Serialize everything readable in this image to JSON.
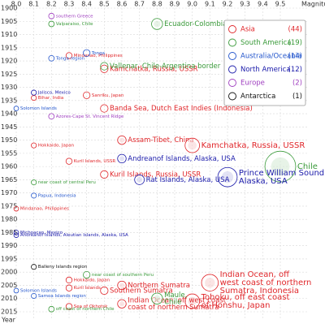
{
  "chart_data": {
    "type": "scatter",
    "x_label": "Magnitude",
    "y_label": "Year",
    "xlim": [
      8.0,
      9.5
    ],
    "ylim": [
      1900,
      2015
    ],
    "xticks": [
      {
        "value": 8.0,
        "label": "8.0"
      },
      8.1,
      8.2,
      8.3,
      8.4,
      8.5,
      8.6,
      8.7,
      8.8,
      8.9,
      {
        "value": 9.0,
        "label": "9.0"
      },
      9.1,
      9.2,
      9.3,
      9.4,
      9.5
    ],
    "yticks": [
      1900,
      1905,
      1910,
      1915,
      1920,
      1925,
      1930,
      1935,
      1940,
      1945,
      1950,
      1955,
      1960,
      1965,
      1970,
      1975,
      1980,
      1985,
      1990,
      1995,
      2000,
      2005,
      2010,
      2015
    ],
    "grid": true,
    "legend_position": "upper right",
    "series": [
      {
        "name": "Asia",
        "color": "#e0262a",
        "count": 44,
        "count_label": "(44)",
        "x": [
          8.5,
          8.5,
          8.6,
          9.0,
          8.5,
          9.1,
          8.6,
          8.5,
          9.0,
          8.6,
          8.4,
          8.1,
          8.3,
          8.1,
          8.3,
          8.0,
          8.3,
          8.3,
          8.3
        ],
        "y": [
          1923,
          1938,
          1950,
          1952,
          1963,
          2004,
          2005,
          2007,
          2011,
          2012,
          1933,
          1934,
          1918,
          1952,
          1958,
          1976,
          2003,
          2006,
          2013
        ],
        "labels": [
          [
            "Kamchatka, Russia, USSR"
          ],
          [
            "Banda Sea, Dutch East Indies (Indonesia)"
          ],
          [
            "Assam-Tibet, China"
          ],
          [
            "Kamchatka, Russia, USSR"
          ],
          [
            "Kuril Islands, Russia, USSR"
          ],
          [
            "Indian Ocean, off",
            "west coast of northern",
            "Sumatra, Indonesia"
          ],
          [
            "Northern Sumatra"
          ],
          [
            "Southern Sumatra"
          ],
          [
            "Tohoku, off east coast",
            "of Honshu, Japan"
          ],
          [
            "Indian Ocean, off west coast",
            "coast of northern Sumatra"
          ],
          [
            "Sanriku, Japan"
          ],
          [
            "Bihar, India"
          ],
          [
            "Mindanao, Philippines"
          ],
          [
            "Hokkaido, Japan"
          ],
          [
            "Kuril Islands, USSR"
          ],
          [
            "Mindanao, Philippines"
          ],
          [
            "Hokkaido, Japan"
          ],
          [
            "Kuril Islands"
          ],
          [
            "Sea of Okhotsk"
          ]
        ]
      },
      {
        "name": "South America",
        "color": "#3a9a3a",
        "count": 19,
        "count_label": "(19)",
        "x": [
          8.8,
          8.2,
          8.5,
          9.5,
          8.8,
          8.1,
          8.4,
          8.2
        ],
        "y": [
          1906,
          1906,
          1922,
          1960,
          2010,
          1966,
          2001,
          2014
        ],
        "labels": [
          [
            "Ecuador-Colombia"
          ],
          [
            "Valparaiso, Chile"
          ],
          [
            "Vallenar, Chile-Argentina border"
          ],
          [
            "Chile"
          ],
          [
            "Maule,",
            "Chile"
          ],
          [
            "near coast of central Peru"
          ],
          [
            "near coast of southern Peru"
          ],
          [
            "off coast of northern Chile"
          ]
        ]
      },
      {
        "name": "Australia/Oceania",
        "color": "#2255cc",
        "count": 14,
        "count_label": "(14)",
        "x": [
          8.4,
          8.2,
          8.1,
          8.0,
          8.1,
          8.0
        ],
        "y": [
          1917,
          1919,
          1971,
          2007,
          2009,
          1938
        ],
        "labels": [
          [
            "Tonga"
          ],
          [
            "Tonga region"
          ],
          [
            "Papua, Indonesia"
          ],
          [
            "Solomon Islands"
          ],
          [
            "Samoa Islands region"
          ],
          [
            "Solomon Islands"
          ]
        ]
      },
      {
        "name": "North America",
        "color": "#1a1aaa",
        "count": 12,
        "count_label": "(12)",
        "x": [
          8.6,
          9.2,
          8.7,
          8.1,
          8.0,
          8.0
        ],
        "y": [
          1957,
          1964,
          1965,
          1932,
          1985,
          1986
        ],
        "labels": [
          [
            "Andreanof Islands, Alaska, USA"
          ],
          [
            "Prince William Sound,",
            "Alaska, USA"
          ],
          [
            "Rat Islands, Alaska, USA"
          ],
          [
            "Jalisco, Mexico"
          ],
          [
            "Michoacan, Mexico"
          ],
          [
            "Andreanof Islands, Aleutian Islands, Alaska, USA"
          ]
        ]
      },
      {
        "name": "Europe",
        "color": "#a040c0",
        "count": 2,
        "count_label": "(2)",
        "x": [
          8.2,
          8.2
        ],
        "y": [
          1903,
          1941
        ],
        "labels": [
          [
            "southern Greece"
          ],
          [
            "Azores-Cape St. Vincent Ridge"
          ]
        ]
      },
      {
        "name": "Antarctica",
        "color": "#111111",
        "count": 1,
        "count_label": "(1)",
        "x": [
          8.1
        ],
        "y": [
          1998
        ],
        "labels": [
          [
            "Balleny Islands region"
          ]
        ]
      }
    ]
  }
}
